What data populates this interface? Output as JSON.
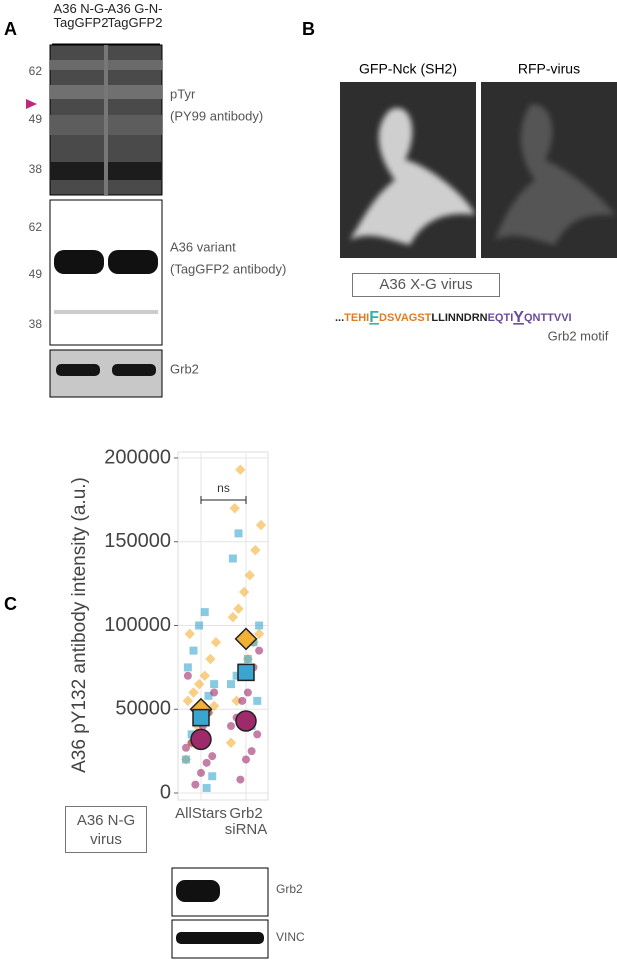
{
  "panel_a": {
    "label": "A",
    "lanes": [
      "A36 N-G-TagGFP2",
      "A36 G-N-TagGFP2"
    ],
    "blots": [
      {
        "markers": [
          "62",
          "49",
          "38"
        ],
        "caption": [
          "pTyr",
          "(PY99 antibody)"
        ]
      },
      {
        "markers": [
          "62",
          "49",
          "38"
        ],
        "caption": [
          "A36 variant",
          "(TagGFP2 antibody)"
        ]
      },
      {
        "caption": [
          "Grb2"
        ]
      }
    ]
  },
  "panel_b": {
    "label": "B",
    "images": [
      "GFP-Nck (SH2)",
      "RFP-virus"
    ],
    "box": "A36 X-G virus",
    "sequence": [
      {
        "text": "...",
        "color": "#222222"
      },
      {
        "text": "TEHI",
        "color": "#e07b20"
      },
      {
        "text": "F",
        "color": "#2fb5a5"
      },
      {
        "text": "DSVAGST",
        "color": "#e07b20"
      },
      {
        "text": "LLINNDRN",
        "color": "#222222"
      },
      {
        "text": "EQTI",
        "color": "#6a4a9c"
      },
      {
        "text": "Y",
        "color": "#6a4a9c"
      },
      {
        "text": "QNTTVVI",
        "color": "#6a4a9c"
      }
    ],
    "motif": "Grb2 motif"
  },
  "panel_c": {
    "label": "C",
    "box": "A36 N-G virus",
    "blots": [
      "Grb2",
      "VINC"
    ],
    "chart_data": {
      "type": "strip",
      "y_label": "A36 pY132 antibody intensity (a.u.)",
      "categories": [
        "AllStars",
        "Grb2 siRNA"
      ],
      "ylim": [
        0,
        200000
      ],
      "yticks": [
        0,
        50000,
        100000,
        150000,
        200000
      ],
      "grid": true,
      "annotation": "ns",
      "series": [
        {
          "color": "#f2b134",
          "marker": "diamond",
          "values": [
            [
              20000,
              30000,
              40000,
              45000,
              48000,
              52000,
              55000,
              60000,
              65000,
              70000,
              80000,
              90000,
              95000
            ],
            [
              30000,
              55000,
              70000,
              80000,
              90000,
              95000,
              105000,
              110000,
              120000,
              130000,
              145000,
              160000,
              170000,
              193000
            ]
          ],
          "means": [
            50000,
            92000
          ]
        },
        {
          "color": "#3aa6d0",
          "marker": "square",
          "values": [
            [
              3000,
              10000,
              20000,
              35000,
              42000,
              50000,
              58000,
              65000,
              75000,
              85000,
              100000,
              108000
            ],
            [
              40000,
              55000,
              65000,
              70000,
              75000,
              80000,
              90000,
              100000,
              140000,
              155000
            ]
          ],
          "means": [
            45000,
            72000
          ]
        },
        {
          "color": "#9e2a6b",
          "marker": "circle",
          "values": [
            [
              5000,
              12000,
              18000,
              22000,
              27000,
              30000,
              35000,
              40000,
              48000,
              60000,
              70000
            ],
            [
              8000,
              20000,
              25000,
              35000,
              40000,
              45000,
              55000,
              60000,
              75000,
              85000
            ]
          ],
          "means": [
            32000,
            43000
          ]
        }
      ]
    }
  }
}
